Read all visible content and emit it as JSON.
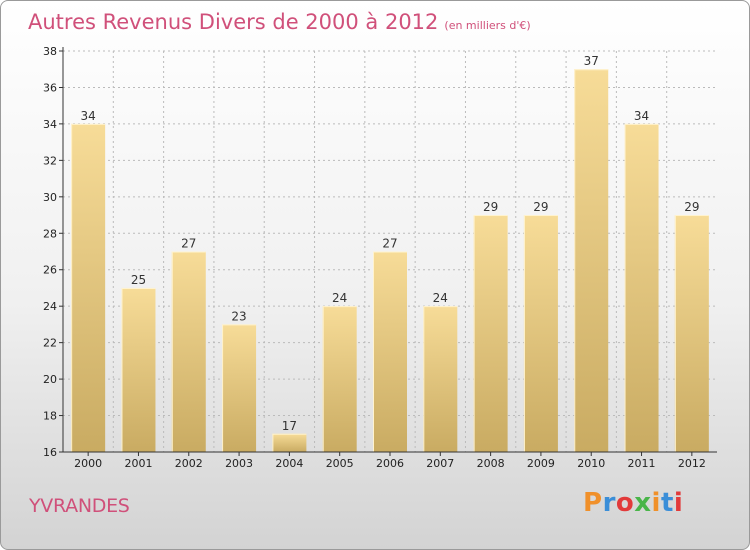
{
  "header": {
    "title": "Autres Revenus Divers de 2000 à 2012",
    "subtitle": "(en milliers d'€)"
  },
  "footer": {
    "place": "YVRANDES",
    "logo_text": "Proxiti",
    "logo_colors": [
      "#f0902a",
      "#3a8ed8",
      "#e23a3a",
      "#49b549",
      "#f0902a",
      "#3a8ed8",
      "#e23a3a"
    ]
  },
  "colors": {
    "bar_light": "#f7dc98",
    "bar_dark": "#c9ab62",
    "axis": "#333333",
    "grid": "#bbbbbb",
    "title": "#d0507a"
  },
  "chart_data": {
    "type": "bar",
    "categories": [
      "2000",
      "2001",
      "2002",
      "2003",
      "2004",
      "2005",
      "2006",
      "2007",
      "2008",
      "2009",
      "2010",
      "2011",
      "2012"
    ],
    "values": [
      34,
      25,
      27,
      23,
      17,
      24,
      27,
      24,
      29,
      29,
      37,
      34,
      29
    ],
    "title": "Autres Revenus Divers de 2000 à 2012",
    "subtitle": "(en milliers d'€)",
    "xlabel": "",
    "ylabel": "",
    "ylim": [
      16,
      38
    ],
    "yticks": [
      16,
      18,
      20,
      22,
      24,
      26,
      28,
      30,
      32,
      34,
      36,
      38
    ],
    "grid": true,
    "data_labels": true
  }
}
